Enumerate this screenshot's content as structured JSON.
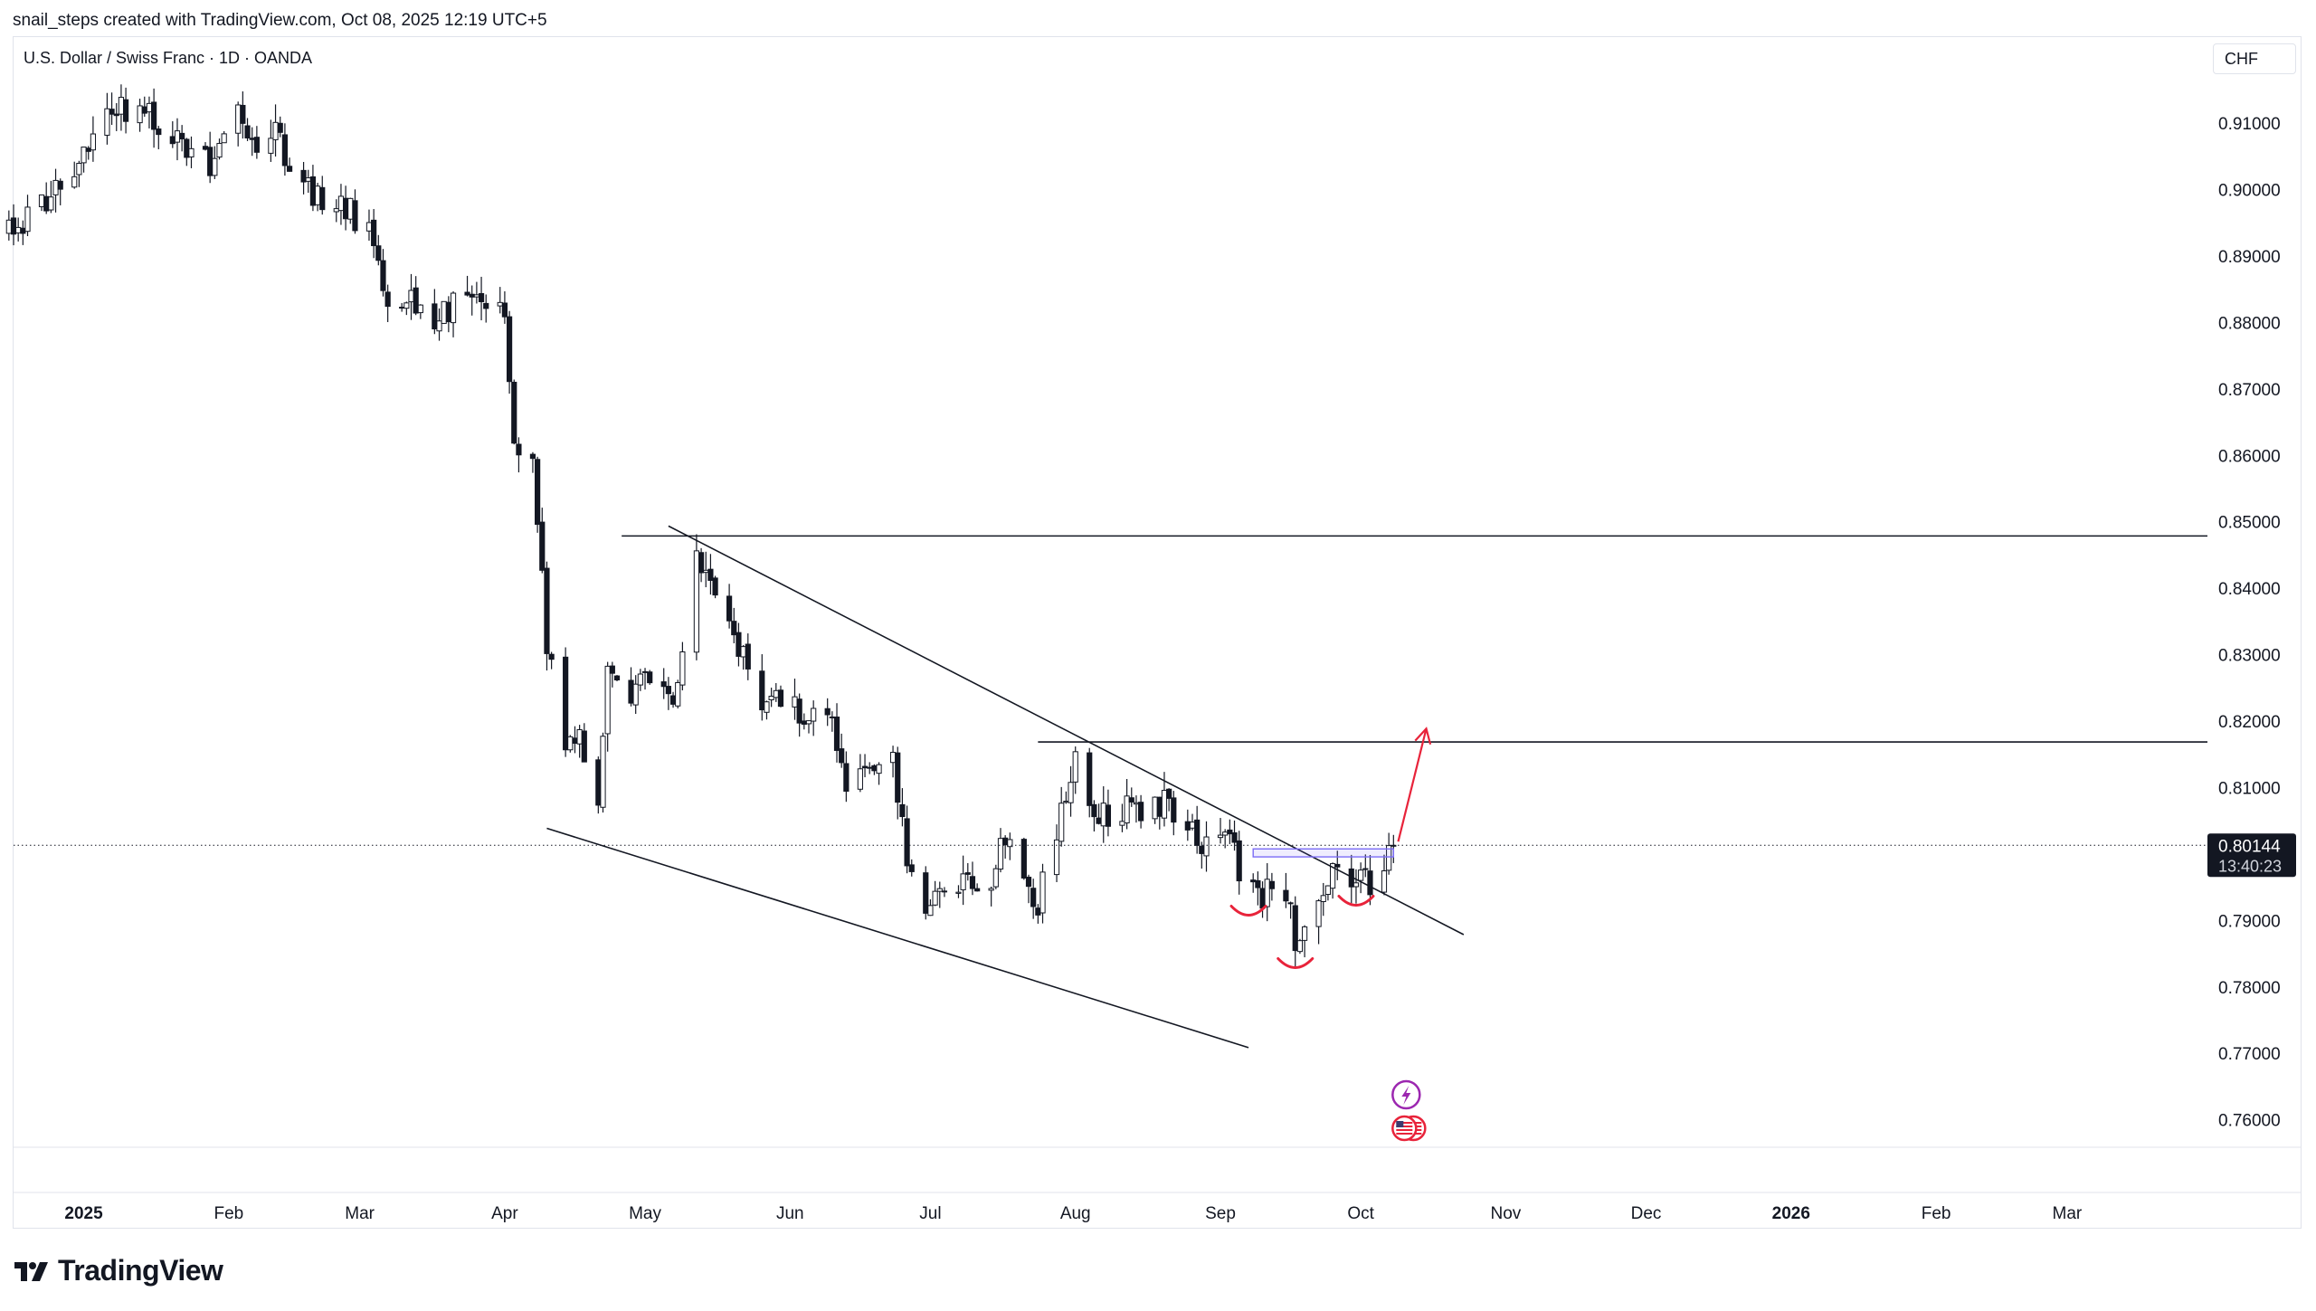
{
  "header": {
    "attribution": "snail_steps created with TradingView.com, Oct 08, 2025 12:19 UTC+5"
  },
  "chart_header": {
    "symbol_title": "U.S. Dollar / Swiss Franc · 1D · OANDA",
    "currency": "CHF"
  },
  "brand": {
    "logo_text": "TradingView",
    "logo_icon": "tradingview-logo-icon"
  },
  "colors": {
    "candle": "#131722",
    "up_body": "#ffffff",
    "down_body": "#131722",
    "annotation_red": "#e8233a",
    "rectangle": "#7b6cf6",
    "price_label_bg": "#131722",
    "event_icon": "#9c27b0"
  },
  "chart_data": {
    "type": "candlestick",
    "title": "",
    "symbol": "USD/CHF",
    "interval": "1D",
    "source": "OANDA",
    "ylim": [
      0.756,
      0.9175
    ],
    "xlim": [
      "2024-12-17",
      "2026-03-31"
    ],
    "y_ticks": [
      0.91,
      0.9,
      0.89,
      0.88,
      0.87,
      0.86,
      0.85,
      0.84,
      0.83,
      0.82,
      0.81,
      0.8,
      0.79,
      0.78,
      0.77,
      0.76
    ],
    "y_tick_labels": [
      "0.91000",
      "0.90000",
      "0.89000",
      "0.88000",
      "0.87000",
      "0.86000",
      "0.85000",
      "0.84000",
      "0.83000",
      "0.82000",
      "0.81000",
      "0.80000",
      "0.79000",
      "0.78000",
      "0.77000",
      "0.76000"
    ],
    "x_ticks": [
      {
        "date": "2025-01-01",
        "label": "2025",
        "bold": true
      },
      {
        "date": "2025-02-01",
        "label": "Feb",
        "bold": false
      },
      {
        "date": "2025-03-01",
        "label": "Mar",
        "bold": false
      },
      {
        "date": "2025-04-01",
        "label": "Apr",
        "bold": false
      },
      {
        "date": "2025-05-01",
        "label": "May",
        "bold": false
      },
      {
        "date": "2025-06-01",
        "label": "Jun",
        "bold": false
      },
      {
        "date": "2025-07-01",
        "label": "Jul",
        "bold": false
      },
      {
        "date": "2025-08-01",
        "label": "Aug",
        "bold": false
      },
      {
        "date": "2025-09-01",
        "label": "Sep",
        "bold": false
      },
      {
        "date": "2025-10-01",
        "label": "Oct",
        "bold": false
      },
      {
        "date": "2025-11-01",
        "label": "Nov",
        "bold": false
      },
      {
        "date": "2025-12-01",
        "label": "Dec",
        "bold": false
      },
      {
        "date": "2026-01-01",
        "label": "2026",
        "bold": true
      },
      {
        "date": "2026-02-01",
        "label": "Feb",
        "bold": false
      },
      {
        "date": "2026-03-01",
        "label": "Mar",
        "bold": false
      }
    ],
    "trend_path": [
      [
        "2024-12-16",
        0.8935
      ],
      [
        "2024-12-20",
        0.8955
      ],
      [
        "2024-12-27",
        0.901
      ],
      [
        "2025-01-03",
        0.908
      ],
      [
        "2025-01-08",
        0.912
      ],
      [
        "2025-01-13",
        0.9125
      ],
      [
        "2025-01-17",
        0.91
      ],
      [
        "2025-01-22",
        0.906
      ],
      [
        "2025-01-28",
        0.904
      ],
      [
        "2025-02-03",
        0.912
      ],
      [
        "2025-02-06",
        0.9055
      ],
      [
        "2025-02-11",
        0.911
      ],
      [
        "2025-02-14",
        0.902
      ],
      [
        "2025-02-20",
        0.899
      ],
      [
        "2025-02-26",
        0.897
      ],
      [
        "2025-03-03",
        0.895
      ],
      [
        "2025-03-07",
        0.881
      ],
      [
        "2025-03-12",
        0.883
      ],
      [
        "2025-03-17",
        0.88
      ],
      [
        "2025-03-21",
        0.883
      ],
      [
        "2025-03-27",
        0.882
      ],
      [
        "2025-04-01",
        0.883
      ],
      [
        "2025-04-03",
        0.862
      ],
      [
        "2025-04-07",
        0.858
      ],
      [
        "2025-04-10",
        0.832
      ],
      [
        "2025-04-14",
        0.816
      ],
      [
        "2025-04-17",
        0.817
      ],
      [
        "2025-04-21",
        0.808
      ],
      [
        "2025-04-23",
        0.828
      ],
      [
        "2025-04-28",
        0.825
      ],
      [
        "2025-05-02",
        0.827
      ],
      [
        "2025-05-07",
        0.824
      ],
      [
        "2025-05-12",
        0.844
      ],
      [
        "2025-05-15",
        0.84
      ],
      [
        "2025-05-20",
        0.833
      ],
      [
        "2025-05-26",
        0.823
      ],
      [
        "2025-05-30",
        0.824
      ],
      [
        "2025-06-04",
        0.821
      ],
      [
        "2025-06-09",
        0.823
      ],
      [
        "2025-06-13",
        0.811
      ],
      [
        "2025-06-18",
        0.815
      ],
      [
        "2025-06-23",
        0.814
      ],
      [
        "2025-06-26",
        0.799
      ],
      [
        "2025-07-01",
        0.792
      ],
      [
        "2025-07-04",
        0.795
      ],
      [
        "2025-07-09",
        0.796
      ],
      [
        "2025-07-14",
        0.797
      ],
      [
        "2025-07-17",
        0.802
      ],
      [
        "2025-07-21",
        0.796
      ],
      [
        "2025-07-24",
        0.793
      ],
      [
        "2025-07-28",
        0.804
      ],
      [
        "2025-08-01",
        0.814
      ],
      [
        "2025-08-05",
        0.806
      ],
      [
        "2025-08-11",
        0.807
      ],
      [
        "2025-08-15",
        0.806
      ],
      [
        "2025-08-20",
        0.808
      ],
      [
        "2025-08-25",
        0.805
      ],
      [
        "2025-08-29",
        0.801
      ],
      [
        "2025-09-03",
        0.805
      ],
      [
        "2025-09-05",
        0.797
      ],
      [
        "2025-09-09",
        0.793
      ],
      [
        "2025-09-12",
        0.796
      ],
      [
        "2025-09-15",
        0.795
      ],
      [
        "2025-09-17",
        0.787
      ],
      [
        "2025-09-19",
        0.791
      ],
      [
        "2025-09-23",
        0.794
      ],
      [
        "2025-09-26",
        0.799
      ],
      [
        "2025-09-30",
        0.796
      ],
      [
        "2025-10-03",
        0.796
      ],
      [
        "2025-10-06",
        0.799
      ],
      [
        "2025-10-08",
        0.80144
      ]
    ],
    "annotations": {
      "descending_resistance": [
        [
          "2025-05-06",
          0.8495
        ],
        [
          "2025-10-23",
          0.788
        ]
      ],
      "descending_support": [
        [
          "2025-04-10",
          0.804
        ],
        [
          "2025-09-07",
          0.771
        ]
      ],
      "horizontal_lines": [
        {
          "from": "2025-04-26",
          "to": "2026-03-31",
          "price": 0.848
        },
        {
          "from": "2025-07-24",
          "to": "2026-03-31",
          "price": 0.817
        }
      ],
      "rectangle": {
        "from": "2025-09-08",
        "to": "2025-10-08",
        "top": 0.8009,
        "bottom": 0.7997
      },
      "projection_arrow": [
        [
          "2025-10-09",
          0.802
        ],
        [
          "2025-10-15",
          0.819
        ]
      ],
      "inverse_head_shoulders_marks": [
        {
          "date": "2025-09-07",
          "price": 0.7912
        },
        {
          "date": "2025-09-17",
          "price": 0.7833
        },
        {
          "date": "2025-09-30",
          "price": 0.7927
        }
      ]
    },
    "last_price": {
      "value": 0.80144,
      "label": "0.80144",
      "countdown": "13:40:23"
    },
    "events": [
      {
        "date": "2025-10-08",
        "icon": "lightning-icon"
      },
      {
        "date": "2025-10-08",
        "icon": "us-flag-icon"
      }
    ]
  }
}
